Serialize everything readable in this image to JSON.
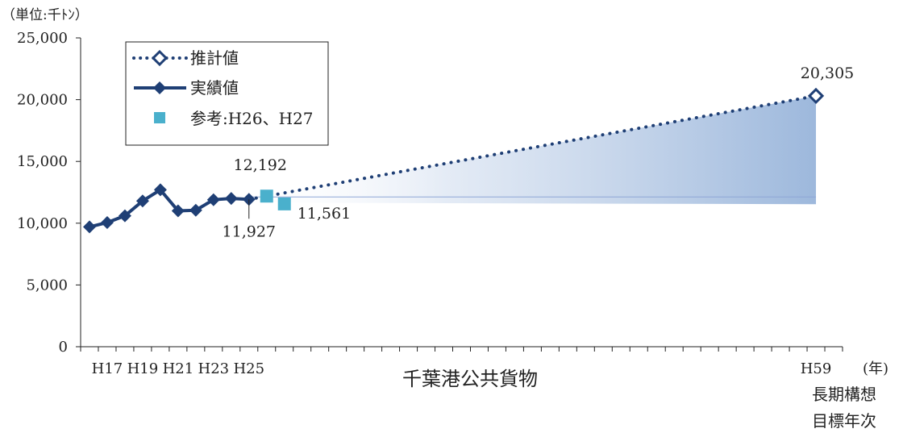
{
  "chart_data": {
    "type": "line",
    "unit_label": "（単位:千ﾄﾝ）",
    "xlabel": "千葉港公共貨物",
    "ylim": [
      0,
      25000
    ],
    "yticks": [
      "0",
      "5,000",
      "10,000",
      "15,000",
      "20,000",
      "25,000"
    ],
    "x_tick_count": 43,
    "x_tick_labels": [
      {
        "index": 1,
        "label": "H17"
      },
      {
        "index": 3,
        "label": "H19"
      },
      {
        "index": 5,
        "label": "H21"
      },
      {
        "index": 7,
        "label": "H23"
      },
      {
        "index": 9,
        "label": "H25"
      },
      {
        "index": 41,
        "label": "H59"
      }
    ],
    "x_unit": "(年)",
    "target_note": [
      "長期構想",
      "目標年次"
    ],
    "series": [
      {
        "name": "実績値",
        "style": "solid-diamond",
        "color": "#1f3f75",
        "points": [
          [
            0,
            9700
          ],
          [
            1,
            10050
          ],
          [
            2,
            10600
          ],
          [
            3,
            11800
          ],
          [
            4,
            12700
          ],
          [
            5,
            11000
          ],
          [
            6,
            11050
          ],
          [
            7,
            11900
          ],
          [
            8,
            12000
          ],
          [
            9,
            11927
          ]
        ]
      },
      {
        "name": "推計値",
        "style": "dotted-open-diamond",
        "color": "#1f3f75",
        "points": [
          [
            9,
            11927
          ],
          [
            41,
            20305
          ]
        ]
      },
      {
        "name": "参考:H26、H27",
        "style": "square",
        "color": "#4ab0cc",
        "points": [
          [
            10,
            12192
          ],
          [
            11,
            11561
          ]
        ]
      }
    ],
    "annotations": [
      {
        "text": "11,927"
      },
      {
        "text": "12,192"
      },
      {
        "text": "11,561"
      },
      {
        "text": "20,305"
      }
    ],
    "range_band": {
      "from_index": 9,
      "to_index": 41,
      "lower_end": 11927,
      "upper_end": 20305,
      "color": "#9db8dc"
    }
  }
}
